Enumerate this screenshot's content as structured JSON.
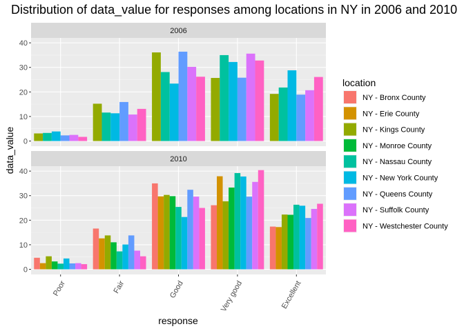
{
  "chart_data": {
    "type": "bar",
    "title": "Distribution of data_value for responses among locations in NY in 2006 and 2010",
    "xlabel": "response",
    "ylabel": "data_value",
    "ylim": [
      0,
      42
    ],
    "yticks": [
      0,
      10,
      20,
      30,
      40
    ],
    "grid": true,
    "legend_title": "location",
    "legend_position": "right",
    "categories": [
      "Poor",
      "Fair",
      "Good",
      "Very good",
      "Excellent"
    ],
    "locations": [
      {
        "name": "NY - Bronx County",
        "color": "#F8766D"
      },
      {
        "name": "NY - Erie County",
        "color": "#D39200"
      },
      {
        "name": "NY - Kings County",
        "color": "#93AA00"
      },
      {
        "name": "NY - Monroe County",
        "color": "#00BA38"
      },
      {
        "name": "NY - Nassau County",
        "color": "#00C19F"
      },
      {
        "name": "NY - New York County",
        "color": "#00B9E3"
      },
      {
        "name": "NY - Queens County",
        "color": "#619CFF"
      },
      {
        "name": "NY - Suffolk County",
        "color": "#DB72FB"
      },
      {
        "name": "NY - Westchester County",
        "color": "#FF61C3"
      }
    ],
    "panels": [
      {
        "label": "2006",
        "series": [
          {
            "location": "NY - Kings County",
            "values": [
              3.1,
              15.2,
              36.1,
              25.7,
              19.2
            ]
          },
          {
            "location": "NY - Nassau County",
            "values": [
              3.3,
              11.6,
              28.1,
              35.0,
              21.8
            ]
          },
          {
            "location": "NY - New York County",
            "values": [
              3.9,
              11.3,
              23.4,
              32.2,
              28.8
            ]
          },
          {
            "location": "NY - Queens County",
            "values": [
              2.3,
              15.9,
              36.4,
              25.8,
              18.9
            ]
          },
          {
            "location": "NY - Suffolk County",
            "values": [
              2.5,
              10.8,
              30.2,
              35.6,
              20.7
            ]
          },
          {
            "location": "NY - Westchester County",
            "values": [
              1.7,
              13.1,
              26.2,
              32.8,
              26.1
            ]
          }
        ]
      },
      {
        "label": "2010",
        "series": [
          {
            "location": "NY - Bronx County",
            "values": [
              4.7,
              16.6,
              35.0,
              26.1,
              17.4
            ]
          },
          {
            "location": "NY - Erie County",
            "values": [
              2.5,
              12.6,
              29.7,
              37.9,
              17.2
            ]
          },
          {
            "location": "NY - Kings County",
            "values": [
              5.3,
              13.8,
              30.3,
              27.7,
              22.3
            ]
          },
          {
            "location": "NY - Monroe County",
            "values": [
              3.2,
              11.0,
              29.8,
              33.3,
              22.2
            ]
          },
          {
            "location": "NY - Nassau County",
            "values": [
              2.3,
              7.3,
              25.4,
              39.2,
              26.3
            ]
          },
          {
            "location": "NY - New York County",
            "values": [
              4.4,
              10.1,
              21.3,
              37.8,
              25.9
            ]
          },
          {
            "location": "NY - Queens County",
            "values": [
              2.4,
              13.8,
              32.4,
              29.6,
              20.9
            ]
          },
          {
            "location": "NY - Suffolk County",
            "values": [
              2.5,
              7.6,
              29.6,
              35.6,
              24.6
            ]
          },
          {
            "location": "NY - Westchester County",
            "values": [
              2.1,
              5.3,
              25.0,
              40.4,
              26.7
            ]
          }
        ]
      }
    ]
  }
}
